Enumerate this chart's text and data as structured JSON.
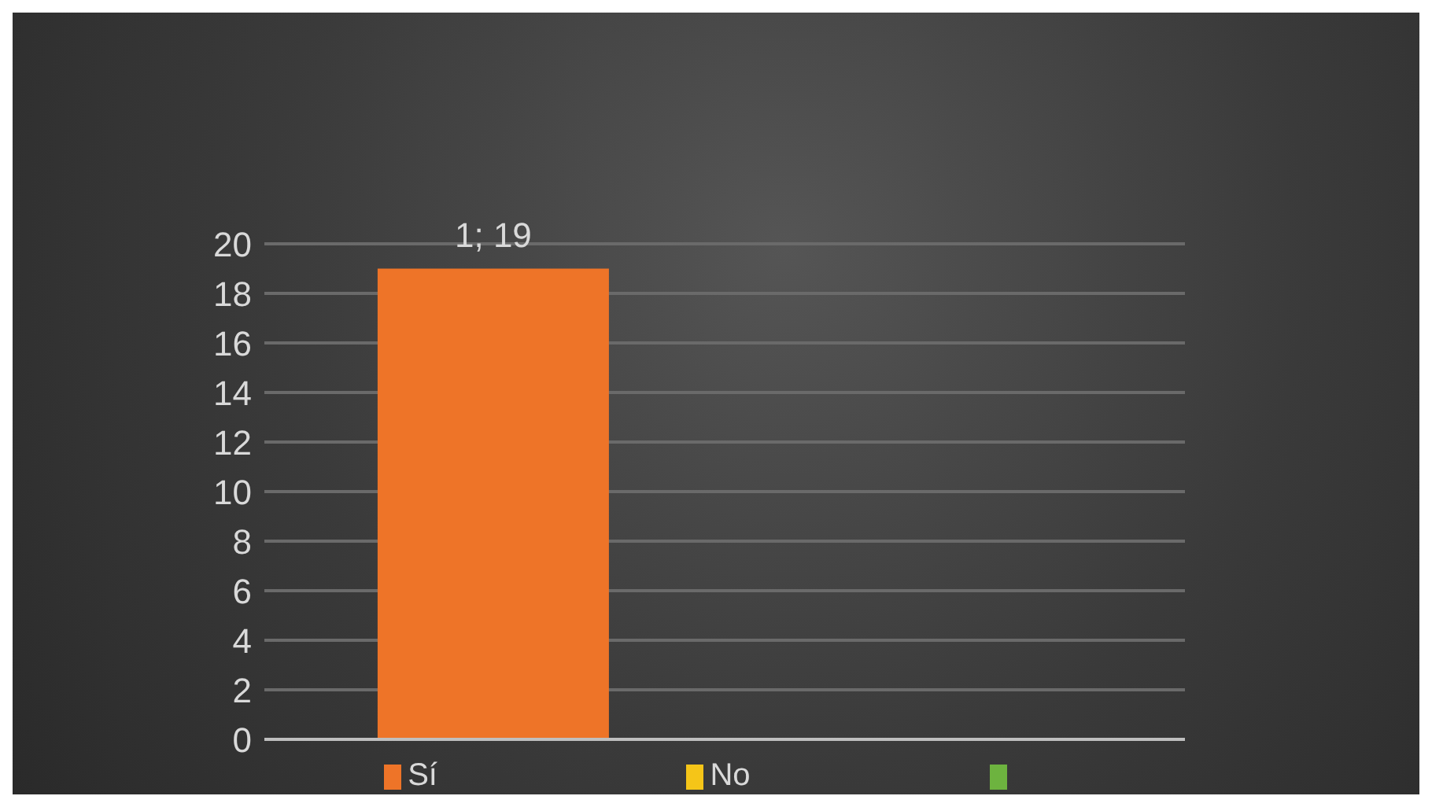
{
  "chart_data": {
    "type": "bar",
    "categories": [
      null
    ],
    "series": [
      {
        "name": "Sí",
        "color": "#ee7428",
        "values": [
          19
        ],
        "value_labels": [
          "1; 19"
        ]
      },
      {
        "name": "No",
        "color": "#f5c518",
        "values": [
          null
        ]
      },
      {
        "color": "#6db33f",
        "values": [
          null
        ]
      }
    ],
    "ylim": [
      0,
      20
    ],
    "yticks": [
      0,
      2,
      4,
      6,
      8,
      10,
      12,
      14,
      16,
      18,
      20
    ],
    "grid": "y",
    "legend": "bottom"
  }
}
